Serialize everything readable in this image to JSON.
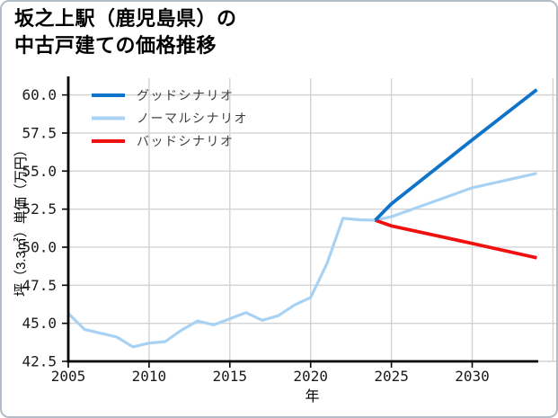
{
  "card": {
    "background": "#ffffff",
    "border_color": "#b3bdc7"
  },
  "title": {
    "line1": "坂之上駅（鹿児島県）の",
    "line2": "中古戸建ての価格推移"
  },
  "chart_data": {
    "type": "line",
    "title": "坂之上駅（鹿児島県）の中古戸建ての価格推移",
    "xlabel": "年",
    "ylabel": "坪（3.3㎡）単価（万円）",
    "xlim": [
      2005,
      2035.2
    ],
    "ylim": [
      42.5,
      61.1
    ],
    "xticks": [
      2005,
      2010,
      2015,
      2020,
      2025,
      2030
    ],
    "x_gridlines": [
      2005,
      2010,
      2015,
      2020,
      2025,
      2030,
      2035
    ],
    "yticks": [
      42.5,
      45.0,
      47.5,
      50.0,
      52.5,
      55.0,
      57.5,
      60.0
    ],
    "grid": true,
    "grid_color": "#d3d3d3",
    "axis_color": "#000000",
    "tick_label_color": "#1a1a1a",
    "legend": {
      "position": "upper-left",
      "frame": false,
      "entries": [
        {
          "key": "good",
          "label": "グッドシナリオ",
          "color": "#0f74c9"
        },
        {
          "key": "normal",
          "label": "ノーマルシナリオ",
          "color": "#a8d2f4"
        },
        {
          "key": "bad",
          "label": "バッドシナリオ",
          "color": "#f01010"
        }
      ]
    },
    "series": [
      {
        "key": "normal",
        "name": "ノーマルシナリオ",
        "color": "#a8d2f4",
        "width": 3.2,
        "x": [
          2005,
          2006,
          2007,
          2008,
          2009,
          2010,
          2011,
          2012,
          2013,
          2014,
          2015,
          2016,
          2017,
          2018,
          2019,
          2020,
          2021,
          2022,
          2023,
          2024,
          2025,
          2030,
          2034
        ],
        "y": [
          45.65,
          44.6,
          44.35,
          44.1,
          43.45,
          43.7,
          43.8,
          44.55,
          45.15,
          44.9,
          45.3,
          45.7,
          45.2,
          45.5,
          46.2,
          46.7,
          48.9,
          51.9,
          51.8,
          51.77,
          52.0,
          53.9,
          54.85
        ]
      },
      {
        "key": "bad",
        "name": "バッドシナリオ",
        "color": "#f01010",
        "width": 3.8,
        "x": [
          2024,
          2025,
          2030,
          2034
        ],
        "y": [
          51.77,
          51.4,
          50.25,
          49.3
        ]
      },
      {
        "key": "good",
        "name": "グッドシナリオ",
        "color": "#0f74c9",
        "width": 3.8,
        "x": [
          2024,
          2025,
          2030,
          2034
        ],
        "y": [
          51.77,
          52.85,
          57.05,
          60.35
        ]
      }
    ]
  }
}
